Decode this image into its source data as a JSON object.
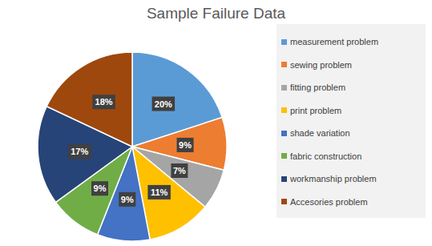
{
  "chart_data": {
    "type": "pie",
    "title": "Sample Failure Data",
    "categories": [
      "measurement problem",
      "sewing problem",
      "fitting problem",
      "print problem",
      "shade variation",
      "fabric construction",
      "workmanship problem",
      "Accesories problem"
    ],
    "values": [
      20,
      9,
      7,
      11,
      9,
      9,
      17,
      18
    ],
    "value_labels": [
      "20%",
      "9%",
      "7%",
      "11%",
      "9%",
      "9%",
      "17%",
      "18%"
    ],
    "colors": [
      "#5b9bd5",
      "#ed7d31",
      "#a5a5a5",
      "#ffc000",
      "#4472c4",
      "#70ad47",
      "#264478",
      "#9e480e"
    ],
    "data_labels": true,
    "legend": "right"
  }
}
